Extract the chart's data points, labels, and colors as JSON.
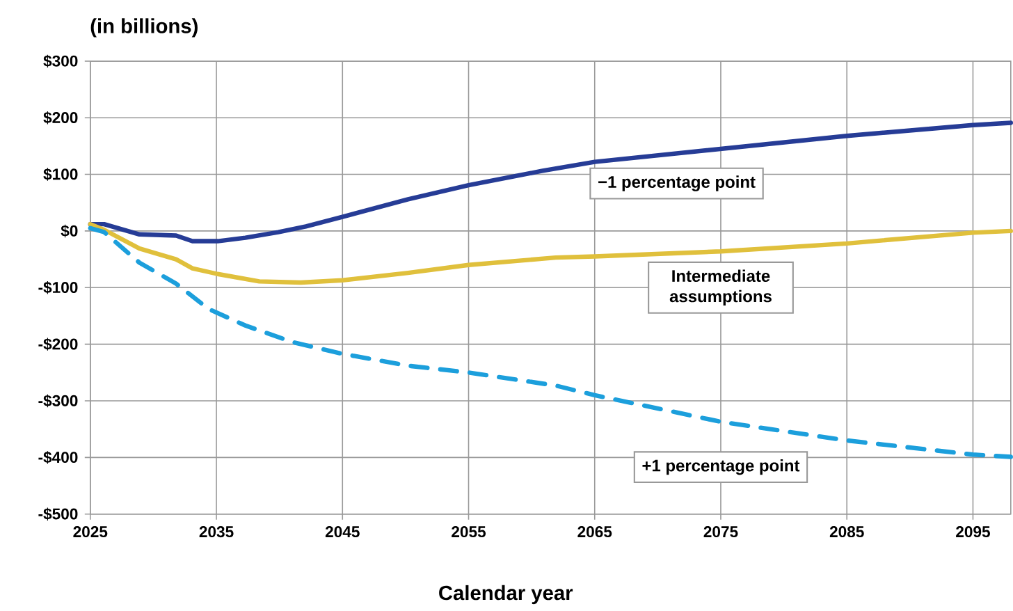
{
  "chart_data": {
    "type": "line",
    "subtitle": "(in billions)",
    "xlabel": "Calendar year",
    "xlim": [
      2025,
      2098
    ],
    "xticks": [
      2025,
      2035,
      2045,
      2055,
      2065,
      2075,
      2085,
      2095
    ],
    "ylim": [
      -500,
      300
    ],
    "yticks": [
      {
        "value": 300,
        "label": "$300"
      },
      {
        "value": 200,
        "label": "$200"
      },
      {
        "value": 100,
        "label": "$100"
      },
      {
        "value": 0,
        "label": "$0"
      },
      {
        "value": -100,
        "label": "-$100"
      },
      {
        "value": -200,
        "label": "-$200"
      },
      {
        "value": -300,
        "label": "-$300"
      },
      {
        "value": -400,
        "label": "-$400"
      },
      {
        "value": -500,
        "label": "-$500"
      }
    ],
    "grid": true,
    "legend": false,
    "series": [
      {
        "name": "−1 percentage point",
        "color": "#263c96",
        "line_style": "solid",
        "x": [
          2025,
          2026.1,
          2028.9,
          2031.8,
          2033.1,
          2035.1,
          2037.3,
          2039.9,
          2042.1,
          2045,
          2050.2,
          2055,
          2060.8,
          2065,
          2075,
          2085,
          2095,
          2098
        ],
        "values": [
          12,
          12,
          -6,
          -8,
          -18,
          -18,
          -12,
          -2,
          8,
          25,
          56,
          81,
          106,
          122,
          145,
          168,
          187,
          191
        ]
      },
      {
        "name": "Intermediate assumptions",
        "color": "#e0c03c",
        "line_style": "solid",
        "x": [
          2025,
          2026.1,
          2028.9,
          2031.8,
          2033.1,
          2035.1,
          2038.4,
          2041.7,
          2045,
          2050.2,
          2055,
          2061.9,
          2065,
          2075,
          2085,
          2095,
          2098
        ],
        "values": [
          12,
          2,
          -31,
          -50,
          -66,
          -76,
          -89,
          -91,
          -87,
          -74,
          -60,
          -47,
          -45,
          -36,
          -22,
          -3,
          0
        ]
      },
      {
        "name": "+1 percentage point",
        "color": "#1c9fdc",
        "line_style": "dashed",
        "x": [
          2025,
          2026.1,
          2028.9,
          2031.8,
          2034.4,
          2037.3,
          2041,
          2045,
          2050.2,
          2055,
          2061.9,
          2065,
          2075,
          2085,
          2095,
          2098
        ],
        "values": [
          5,
          -2,
          -56,
          -93,
          -138,
          -167,
          -196,
          -217,
          -238,
          -250,
          -273,
          -290,
          -337,
          -370,
          -395,
          -399
        ]
      }
    ]
  }
}
